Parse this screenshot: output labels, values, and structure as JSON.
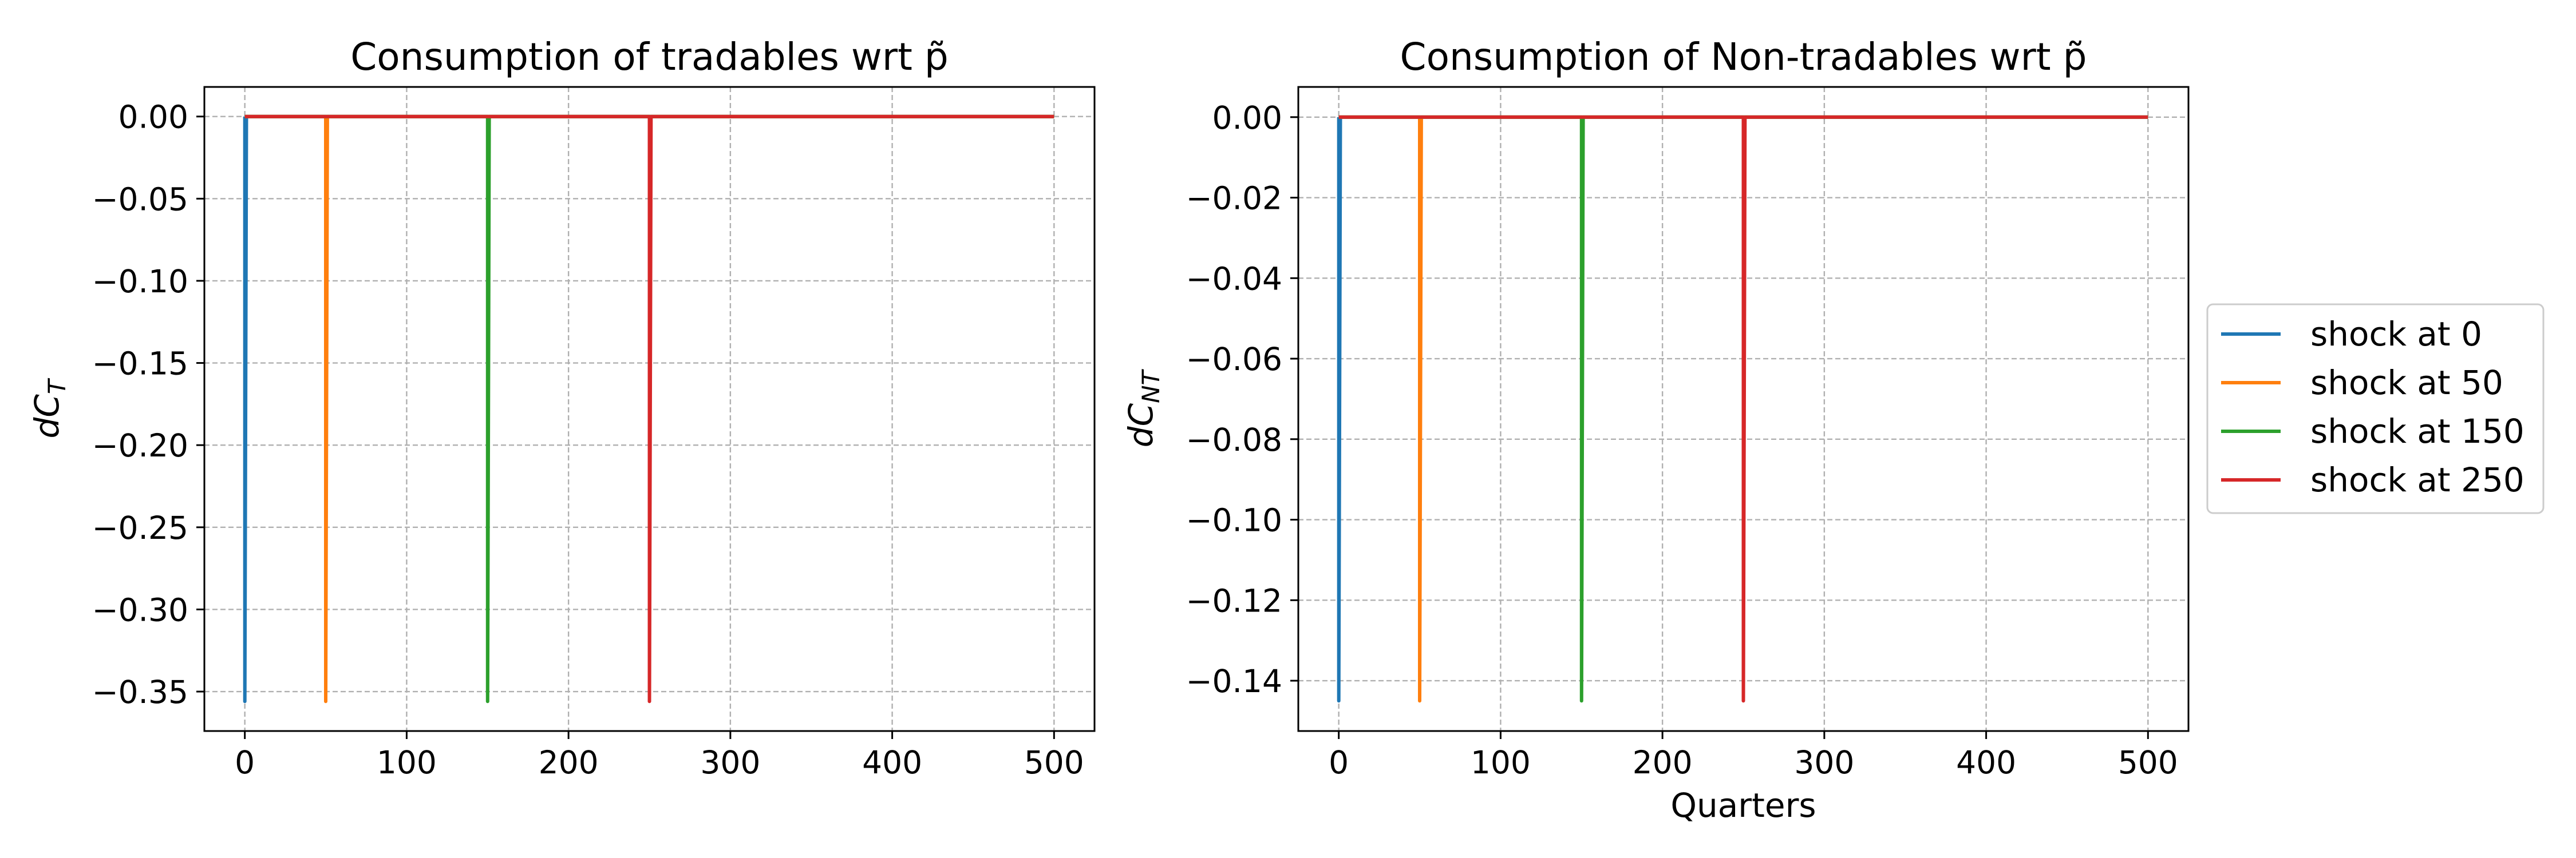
{
  "chart_data": [
    {
      "type": "line",
      "title": "Consumption of tradables wrt p̃",
      "xlabel": "",
      "ylabel": "dC_T",
      "xlim": [
        -25,
        525
      ],
      "ylim": [
        -0.374,
        0.018
      ],
      "xticks": [
        0,
        100,
        200,
        300,
        400,
        500
      ],
      "yticks": [
        0.0,
        -0.05,
        -0.1,
        -0.15,
        -0.2,
        -0.25,
        -0.3,
        -0.35
      ],
      "ytick_labels": [
        "0.00",
        "−0.05",
        "−0.10",
        "−0.15",
        "−0.20",
        "−0.25",
        "−0.30",
        "−0.35"
      ],
      "grid": true,
      "series": [
        {
          "name": "shock at 0",
          "color": "#1f77b4",
          "x": [
            0,
            0,
            1,
            500
          ],
          "y": [
            0,
            -0.356,
            0,
            0
          ]
        },
        {
          "name": "shock at 50",
          "color": "#ff7f0e",
          "x": [
            0,
            50,
            50,
            51,
            500
          ],
          "y": [
            0,
            0,
            -0.356,
            0,
            0
          ]
        },
        {
          "name": "shock at 150",
          "color": "#2ca02c",
          "x": [
            0,
            150,
            150,
            151,
            500
          ],
          "y": [
            0,
            0,
            -0.356,
            0,
            0
          ]
        },
        {
          "name": "shock at 250",
          "color": "#d62728",
          "x": [
            0,
            250,
            250,
            251,
            500
          ],
          "y": [
            0,
            0,
            -0.356,
            0,
            0
          ]
        }
      ]
    },
    {
      "type": "line",
      "title": "Consumption of Non-tradables wrt p̃",
      "xlabel": "Quarters",
      "ylabel": "dC_NT",
      "xlim": [
        -25,
        525
      ],
      "ylim": [
        -0.1525,
        0.0075
      ],
      "xticks": [
        0,
        100,
        200,
        300,
        400,
        500
      ],
      "yticks": [
        0.0,
        -0.02,
        -0.04,
        -0.06,
        -0.08,
        -0.1,
        -0.12,
        -0.14
      ],
      "ytick_labels": [
        "0.00",
        "−0.02",
        "−0.04",
        "−0.06",
        "−0.08",
        "−0.10",
        "−0.12",
        "−0.14"
      ],
      "grid": true,
      "series": [
        {
          "name": "shock at 0",
          "color": "#1f77b4",
          "x": [
            0,
            0,
            1,
            500
          ],
          "y": [
            0,
            -0.145,
            0,
            0
          ]
        },
        {
          "name": "shock at 50",
          "color": "#ff7f0e",
          "x": [
            0,
            50,
            50,
            51,
            500
          ],
          "y": [
            0,
            0,
            -0.145,
            0,
            0
          ]
        },
        {
          "name": "shock at 150",
          "color": "#2ca02c",
          "x": [
            0,
            150,
            150,
            151,
            500
          ],
          "y": [
            0,
            0,
            -0.145,
            0,
            0
          ]
        },
        {
          "name": "shock at 250",
          "color": "#d62728",
          "x": [
            0,
            250,
            250,
            251,
            500
          ],
          "y": [
            0,
            0,
            -0.145,
            0,
            0
          ]
        }
      ]
    }
  ],
  "legend": {
    "placement": "right",
    "entries": [
      {
        "label": "shock at 0",
        "color": "#1f77b4"
      },
      {
        "label": "shock at 50",
        "color": "#ff7f0e"
      },
      {
        "label": "shock at 150",
        "color": "#2ca02c"
      },
      {
        "label": "shock at 250",
        "color": "#d62728"
      }
    ]
  }
}
